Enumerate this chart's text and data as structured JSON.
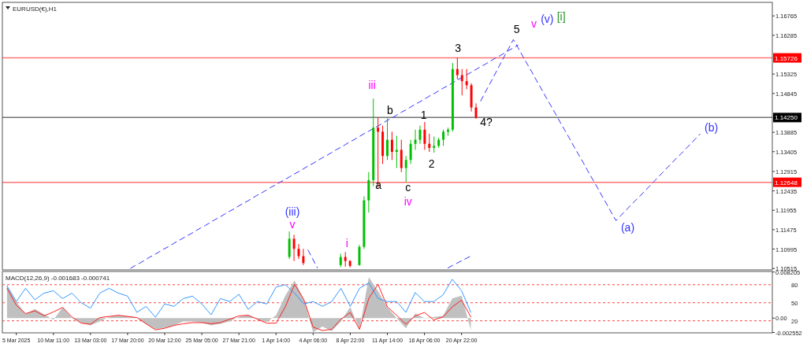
{
  "chart_data": [
    {
      "type": "candlestick",
      "title": "EURUSD(€),H1",
      "tick_labels": "y",
      "ylim": [
        1.1048,
        1.171
      ],
      "yticks": [
        1.16765,
        1.16285,
        1.15325,
        1.14845,
        1.13885,
        1.13405,
        1.12915,
        1.12435,
        1.11955,
        1.11475,
        1.10995,
        1.10515
      ],
      "categories": [
        null,
        null,
        null,
        null,
        null,
        null,
        null,
        null,
        null,
        null,
        null,
        null,
        null,
        null,
        null,
        null,
        null,
        null,
        null,
        null,
        null,
        null,
        null,
        null,
        null,
        null,
        null,
        null,
        null,
        null,
        null,
        null,
        null,
        null,
        null,
        null,
        null,
        null,
        null,
        null,
        null,
        null,
        null,
        null,
        null,
        null,
        null,
        null,
        null,
        null,
        null,
        null,
        null,
        null,
        null,
        null,
        null,
        null,
        null,
        null,
        null,
        null,
        null,
        null,
        null,
        null,
        null,
        null,
        null,
        null,
        null,
        null,
        null,
        null,
        null,
        null,
        null,
        null,
        null,
        null,
        null,
        null,
        null,
        null,
        null,
        null,
        null,
        null,
        null,
        null,
        null,
        null,
        null,
        null,
        null,
        null,
        null,
        null,
        null,
        null,
        null,
        null,
        null,
        null,
        null,
        null,
        null,
        null,
        null,
        null,
        null,
        null,
        null,
        null,
        null,
        null,
        null,
        null,
        null,
        null,
        null,
        null,
        null,
        null,
        null,
        null,
        null,
        null,
        null,
        null,
        null,
        null,
        null,
        null,
        null,
        null,
        null,
        null,
        null,
        null,
        null,
        null,
        null,
        null,
        null,
        null,
        null,
        null,
        null,
        null,
        null,
        null,
        null,
        null,
        null,
        null,
        null,
        null,
        null,
        null,
        null,
        null,
        null,
        null,
        null
      ],
      "ohlc": [
        null,
        null,
        null,
        null,
        null,
        null,
        null,
        null,
        null,
        null,
        null,
        null,
        null,
        null,
        null,
        null,
        null,
        null,
        null,
        null,
        null,
        null,
        null,
        null,
        null,
        null,
        null,
        null,
        null,
        null,
        null,
        null,
        null,
        null,
        null,
        null,
        null,
        null,
        null,
        null,
        null,
        null,
        null,
        null,
        null,
        null,
        null,
        null,
        null,
        null,
        null,
        null,
        null,
        null,
        null,
        null,
        null,
        null,
        null,
        null,
        null,
        [
          1.108,
          1.1143,
          1.1075,
          1.1125
        ],
        [
          1.1125,
          1.1135,
          1.107,
          1.11
        ],
        [
          1.11,
          1.1112,
          1.1075,
          1.1082
        ],
        [
          1.1082,
          1.11,
          1.106,
          1.1065
        ],
        null,
        null,
        null,
        null,
        null,
        null,
        null,
        [
          1.106,
          1.1088,
          1.1055,
          1.108
        ],
        [
          1.108,
          1.1092,
          1.1056,
          1.107
        ],
        [
          1.107,
          1.1072,
          1.1054,
          1.1058
        ],
        null,
        [
          1.106,
          1.111,
          1.1058,
          1.1105
        ],
        [
          1.1105,
          1.123,
          1.11,
          1.122
        ],
        [
          1.122,
          1.129,
          1.119,
          1.127
        ],
        [
          1.127,
          1.1472,
          1.1255,
          1.14
        ],
        [
          1.14,
          1.1425,
          1.1252,
          1.139
        ],
        [
          1.139,
          1.1405,
          1.131,
          1.133
        ],
        [
          1.133,
          1.1423,
          1.132,
          1.137
        ],
        [
          1.137,
          1.139,
          1.132,
          1.134
        ],
        [
          1.134,
          1.138,
          1.13,
          1.1345
        ],
        [
          1.1345,
          1.137,
          1.129,
          1.13
        ],
        [
          1.13,
          1.133,
          1.1266,
          1.132
        ],
        [
          1.132,
          1.137,
          1.131,
          1.136
        ],
        [
          1.136,
          1.1395,
          1.1345,
          1.137
        ],
        [
          1.137,
          1.1405,
          1.136,
          1.1395
        ],
        [
          1.1395,
          1.1414,
          1.1345,
          1.136
        ],
        [
          1.136,
          1.1385,
          1.134,
          1.135
        ],
        [
          1.135,
          1.1378,
          1.1338,
          1.1355
        ],
        [
          1.1355,
          1.1375,
          1.135,
          1.137
        ],
        [
          1.137,
          1.1395,
          1.1355,
          1.139
        ],
        [
          1.139,
          1.14,
          1.138,
          1.1395
        ],
        [
          1.1395,
          1.156,
          1.139,
          1.1545
        ],
        [
          1.1545,
          1.1573,
          1.152,
          1.153
        ],
        [
          1.153,
          1.1545,
          1.148,
          1.1515
        ],
        [
          1.1515,
          1.1545,
          1.1495,
          1.1505
        ],
        [
          1.1505,
          1.151,
          1.144,
          1.145
        ],
        [
          1.145,
          1.146,
          1.1422,
          1.1425
        ],
        null,
        null,
        null,
        null,
        null,
        null,
        null,
        null,
        null,
        null,
        null,
        null,
        null,
        null,
        null,
        null,
        null,
        null,
        null,
        null,
        null,
        null,
        null,
        null,
        null,
        null,
        null,
        null,
        null,
        null,
        null,
        null,
        null,
        null,
        null,
        null,
        null,
        null,
        null,
        null,
        null,
        null,
        null,
        null,
        null,
        null,
        null,
        null,
        null,
        null,
        null,
        null,
        null,
        null,
        null,
        null,
        null,
        null,
        null,
        null,
        null,
        null,
        null
      ],
      "series": [
        {
          "type": "line",
          "color": "#3333ff",
          "line_style": "dashed",
          "values": [
            null,
            null,
            null,
            null,
            null,
            null,
            null,
            null,
            null,
            null,
            null,
            null,
            null,
            null,
            null,
            null,
            null,
            null,
            null,
            null,
            null,
            null,
            null,
            null,
            null,
            null,
            null,
            null,
            null,
            null,
            null,
            null,
            null,
            null,
            null,
            null,
            null,
            null,
            null,
            null,
            null,
            null,
            null,
            null,
            null,
            null,
            null,
            null,
            null,
            null,
            null,
            null,
            null,
            null,
            null,
            null,
            null,
            null,
            null,
            null,
            null,
            null,
            null,
            null,
            null,
            null,
            null,
            null,
            null,
            null,
            null,
            null,
            null,
            null,
            null,
            null,
            null,
            null,
            null,
            null,
            null,
            null,
            null,
            null,
            null,
            null,
            null,
            null,
            null,
            null,
            null,
            null,
            null,
            null,
            null,
            null,
            null,
            null,
            null,
            null,
            null,
            null,
            1.1466,
            1.1488,
            1.1509,
            1.1531,
            1.1553,
            1.1575,
            1.1596,
            1.1618,
            1.1598,
            1.1577,
            1.1557,
            1.1537,
            1.1516,
            1.1496,
            1.1475,
            1.1455,
            1.1435,
            1.1414,
            1.1394,
            1.1374,
            1.1353,
            1.1333,
            1.1313,
            1.1292,
            1.1272,
            1.1252,
            1.1231,
            1.1211,
            1.119,
            1.117,
            1.1182,
            1.1194,
            1.1206,
            1.1218,
            1.1229,
            1.1241,
            1.1253,
            1.1265,
            1.1277,
            1.1289,
            1.1301,
            1.1313,
            1.1325,
            1.1336,
            1.1348,
            1.136,
            1.1372,
            1.1384,
            null,
            null,
            null,
            null,
            null,
            null,
            null,
            null,
            null,
            null,
            null,
            null,
            null,
            null,
            null
          ]
        },
        {
          "type": "line",
          "color": "#3333ff",
          "line_style": "dashed",
          "values": [
            null,
            null,
            null,
            null,
            null,
            null,
            null,
            null,
            null,
            null,
            null,
            null,
            null,
            null,
            null,
            null,
            null,
            null,
            null,
            null,
            null,
            null,
            null,
            null,
            null,
            null,
            null,
            1.1052,
            1.1059,
            1.1065,
            1.1072,
            1.1079,
            1.1085,
            1.1092,
            1.1099,
            1.1105,
            1.1112,
            1.1119,
            1.1125,
            1.1132,
            1.1138,
            1.1145,
            1.1152,
            1.1158,
            1.1165,
            1.1172,
            1.1178,
            1.1185,
            1.1192,
            1.1198,
            1.1205,
            1.1212,
            1.1218,
            1.1225,
            1.1232,
            1.1238,
            1.1245,
            1.1252,
            1.1258,
            1.1265,
            1.1271,
            1.1278,
            1.1285,
            1.1291,
            1.1298,
            1.1305,
            1.1311,
            1.1318,
            1.1325,
            1.1331,
            1.1338,
            1.1345,
            1.1351,
            1.1358,
            1.1365,
            1.1371,
            1.1378,
            1.1385,
            1.1391,
            1.1398,
            1.1404,
            1.1411,
            1.1418,
            1.1424,
            1.1431,
            1.1438,
            1.1444,
            1.1451,
            1.1458,
            1.1464,
            1.1471,
            1.1478,
            1.1484,
            1.1491,
            1.1498,
            1.1504,
            1.1511,
            1.1518,
            1.1524,
            1.1531,
            1.1537,
            1.1544,
            1.1551,
            1.1557,
            1.1564,
            1.1571,
            1.1577,
            1.1584,
            1.1591,
            1.1597,
            1.1604,
            null,
            null,
            null,
            null,
            null,
            null,
            null,
            null,
            null,
            null,
            null,
            null,
            null,
            null,
            null,
            null,
            null,
            null,
            null,
            null,
            null,
            null,
            null,
            null,
            null,
            null,
            null,
            null,
            null,
            null,
            null,
            null,
            null,
            null,
            null,
            null,
            null,
            null,
            null,
            null,
            null,
            null,
            null,
            null,
            null,
            null,
            null,
            null,
            null,
            null,
            null,
            null,
            null,
            null
          ]
        },
        {
          "type": "line",
          "color": "#3333ff",
          "line_style": "dashed",
          "values": [
            null,
            null,
            null,
            null,
            null,
            null,
            null,
            null,
            null,
            null,
            null,
            null,
            null,
            null,
            null,
            null,
            null,
            null,
            null,
            null,
            null,
            null,
            null,
            null,
            null,
            null,
            null,
            null,
            null,
            null,
            null,
            null,
            null,
            null,
            null,
            null,
            null,
            null,
            null,
            null,
            null,
            null,
            null,
            null,
            null,
            null,
            null,
            null,
            null,
            null,
            null,
            null,
            null,
            null,
            null,
            null,
            null,
            null,
            null,
            null,
            null,
            null,
            null,
            null,
            null,
            null,
            null,
            null,
            null,
            null,
            null,
            null,
            null,
            null,
            null,
            null,
            null,
            null,
            null,
            null,
            null,
            null,
            null,
            null,
            null,
            null,
            null,
            null,
            null,
            null,
            null,
            null,
            null,
            null,
            null,
            1.1053,
            1.1059,
            1.1065,
            1.1071,
            1.1077,
            1.1083,
            null,
            null,
            null,
            null,
            null,
            null,
            null,
            null,
            null,
            null,
            null,
            null,
            null,
            null,
            null,
            null,
            null,
            null,
            null,
            null,
            null,
            null,
            null,
            null,
            null,
            null,
            null,
            null,
            null,
            null,
            null,
            null,
            null,
            null,
            null,
            null,
            null,
            null,
            null,
            null,
            null,
            null,
            null,
            null,
            null,
            null,
            null,
            null,
            null,
            null,
            null,
            null,
            null,
            null,
            null,
            null,
            null,
            null,
            null,
            null,
            null,
            null,
            null,
            null
          ]
        },
        {
          "type": "line",
          "color": "#3333ff",
          "line_style": "dashed",
          "values": [
            null,
            null,
            null,
            null,
            null,
            null,
            null,
            null,
            null,
            null,
            null,
            null,
            null,
            null,
            null,
            null,
            null,
            null,
            null,
            null,
            null,
            null,
            null,
            null,
            null,
            null,
            null,
            null,
            null,
            null,
            null,
            null,
            null,
            null,
            null,
            null,
            null,
            null,
            null,
            null,
            null,
            null,
            null,
            null,
            null,
            null,
            null,
            null,
            null,
            null,
            null,
            null,
            null,
            null,
            null,
            null,
            null,
            null,
            null,
            null,
            null,
            null,
            null,
            null,
            null,
            1.1097,
            1.1075,
            1.1053,
            null,
            null,
            null,
            null,
            null,
            null,
            null,
            null,
            null,
            null,
            null,
            null,
            null,
            null,
            null,
            null,
            null,
            null,
            null,
            null,
            null,
            null,
            null,
            null,
            null,
            null,
            null,
            null,
            null,
            null,
            null,
            null,
            null,
            null,
            null,
            null,
            null,
            null,
            null,
            null,
            null,
            null,
            null,
            null,
            null,
            null,
            null,
            null,
            null,
            null,
            null,
            null,
            null,
            null,
            null,
            null,
            null,
            null,
            null,
            null,
            null,
            null,
            null,
            null,
            null,
            null,
            null,
            null,
            null,
            null,
            null,
            null,
            null,
            null,
            null,
            null,
            null,
            null,
            null,
            null,
            null,
            null,
            null,
            null,
            null,
            null,
            null,
            null,
            null,
            null,
            null,
            null,
            null,
            null,
            null,
            null,
            null
          ]
        }
      ],
      "ref_lines": [
        {
          "axis": "y",
          "value": 1.15726,
          "label": "1.15726",
          "color": "#ff0000"
        },
        {
          "axis": "y",
          "value": 1.12648,
          "label": "1.12648",
          "color": "#ff0000"
        },
        {
          "axis": "y",
          "value": 1.1425,
          "label": "1.14250",
          "color": "#000000"
        }
      ],
      "annotations": [
        "(iii)",
        "v",
        "i",
        "iii",
        "b",
        "a",
        "c",
        "iv",
        "1",
        "2",
        "3",
        "4?",
        "5",
        "v",
        "(v)",
        "[i]",
        "(a)",
        "(b)"
      ]
    },
    {
      "type": "line",
      "title": "MACD(12,26,9) -0.001683 -0.000741",
      "ylim": [
        -0.00262,
        0.0083
      ],
      "yticks": [
        0.008205,
        {
          "value": 0,
          "label": "0.00"
        },
        -0.002552
      ],
      "y2lim": [
        0,
        102
      ],
      "y2ticks": [
        80,
        50,
        20
      ],
      "categories": [
        null,
        "5 Mar 2025",
        null,
        null,
        null,
        "10 Mar 11:00",
        null,
        null,
        null,
        "13 Mar 03:00",
        null,
        null,
        null,
        "17 Mar 20:00",
        null,
        null,
        null,
        "20 Mar 12:00",
        null,
        null,
        null,
        "25 Mar 05:00",
        null,
        null,
        null,
        "27 Mar 21:00",
        null,
        null,
        null,
        "1 Apr 14:00",
        null,
        null,
        null,
        "4 Apr 06:00",
        null,
        null,
        null,
        "8 Apr 22:00",
        null,
        null,
        null,
        "11 Apr 14:00",
        null,
        null,
        null,
        "16 Apr 06:00",
        null,
        null,
        null,
        "20 Apr 22:00",
        null,
        null,
        null,
        null,
        null,
        null,
        null,
        null,
        null,
        null,
        null,
        null,
        null,
        null,
        null,
        null,
        null,
        null,
        null,
        null,
        null,
        null,
        null,
        null,
        null,
        null,
        null,
        null,
        null,
        null,
        null,
        null,
        null
      ],
      "series": [
        {
          "type": "area",
          "color": "#c0c0c0",
          "values": [
            0.0058,
            0.0029,
            0.0007,
            0.0016,
            0.0007,
            -0.0003,
            0.0019,
            0,
            -0.0008,
            -0.0013,
            -0.0006,
            0.0002,
            0.0005,
            0.0003,
            0.0001,
            -0.0011,
            -0.002,
            -0.0017,
            -0.0013,
            -0.0006,
            -0.0006,
            -0.0008,
            -0.0013,
            -0.001,
            -0.0006,
            0.0002,
            0.0006,
            -0.0002,
            -0.0007,
            0.0005,
            0.004,
            0.0067,
            0.0033,
            -0.0025,
            -0.0015,
            -0.0023,
            -0.0006,
            0.002,
            -0.002,
            0.0073,
            0.0048,
            0.0019,
            0,
            -0.0018,
            0.0008,
            0,
            0.0002,
            0.0004,
            0.0035,
            0.004,
            -0.0021,
            null,
            null,
            null,
            null,
            null,
            null,
            null,
            null,
            null,
            null,
            null,
            null,
            null,
            null,
            null,
            null,
            null,
            null,
            null,
            null,
            null,
            null,
            null,
            null,
            null,
            null,
            null,
            null,
            null,
            null,
            null,
            null
          ]
        },
        {
          "type": "line",
          "color": "#ff2020",
          "values": [
            0.0053,
            0.0023,
            0.0008,
            0.0013,
            0.0004,
            0.0011,
            0.0019,
            0.0002,
            -0.0009,
            -0.0011,
            0.0001,
            0.0003,
            0.0005,
            0.0003,
            0.0001,
            -0.001,
            -0.0021,
            -0.0018,
            -0.0013,
            -0.001,
            -0.0008,
            -0.0008,
            -0.001,
            -0.0008,
            -0.0002,
            0.0004,
            0.0005,
            -0.0002,
            -0.0009,
            -0.0009,
            0.002,
            0.006,
            0.0033,
            -0.0016,
            -0.0022,
            -0.002,
            -0.0002,
            0.001,
            -0.002,
            0.0035,
            0.006,
            0.002,
            0.0005,
            -0.0011,
            0.0004,
            0.001,
            -0.0003,
            0.0002,
            0.002,
            0.0032,
            0.0002,
            null,
            null,
            null,
            null,
            null,
            null,
            null,
            null,
            null,
            null,
            null,
            null,
            null,
            null,
            null,
            null,
            null,
            null,
            null,
            null,
            null,
            null,
            null,
            null,
            null,
            null,
            null,
            null,
            null,
            null,
            null,
            null
          ]
        },
        {
          "type": "line",
          "axis": "y2",
          "color": "#3399ff",
          "values": [
            78,
            52,
            74,
            55,
            66,
            70,
            57,
            66,
            50,
            41,
            66,
            74,
            66,
            61,
            34,
            44,
            26,
            48,
            44,
            57,
            61,
            48,
            30,
            57,
            52,
            64,
            39,
            52,
            48,
            76,
            80,
            66,
            48,
            52,
            44,
            52,
            74,
            44,
            74,
            83,
            57,
            52,
            52,
            34,
            67,
            52,
            52,
            63,
            89,
            70,
            34,
            null,
            null,
            null,
            null,
            null,
            null,
            null,
            null,
            null,
            null,
            null,
            null,
            null,
            null,
            null,
            null,
            null,
            null,
            null,
            null,
            null,
            null,
            null,
            null,
            null,
            null,
            null,
            null,
            null,
            null,
            null,
            null
          ]
        }
      ],
      "ref_lines": [
        {
          "axis": "y2",
          "value": 80,
          "color": "#ff4040",
          "line_style": "dotted"
        },
        {
          "axis": "y2",
          "value": 50,
          "color": "#ff4040",
          "line_style": "dotted"
        },
        {
          "axis": "y2",
          "value": 20,
          "color": "#ff4040",
          "line_style": "dotted"
        }
      ]
    }
  ]
}
